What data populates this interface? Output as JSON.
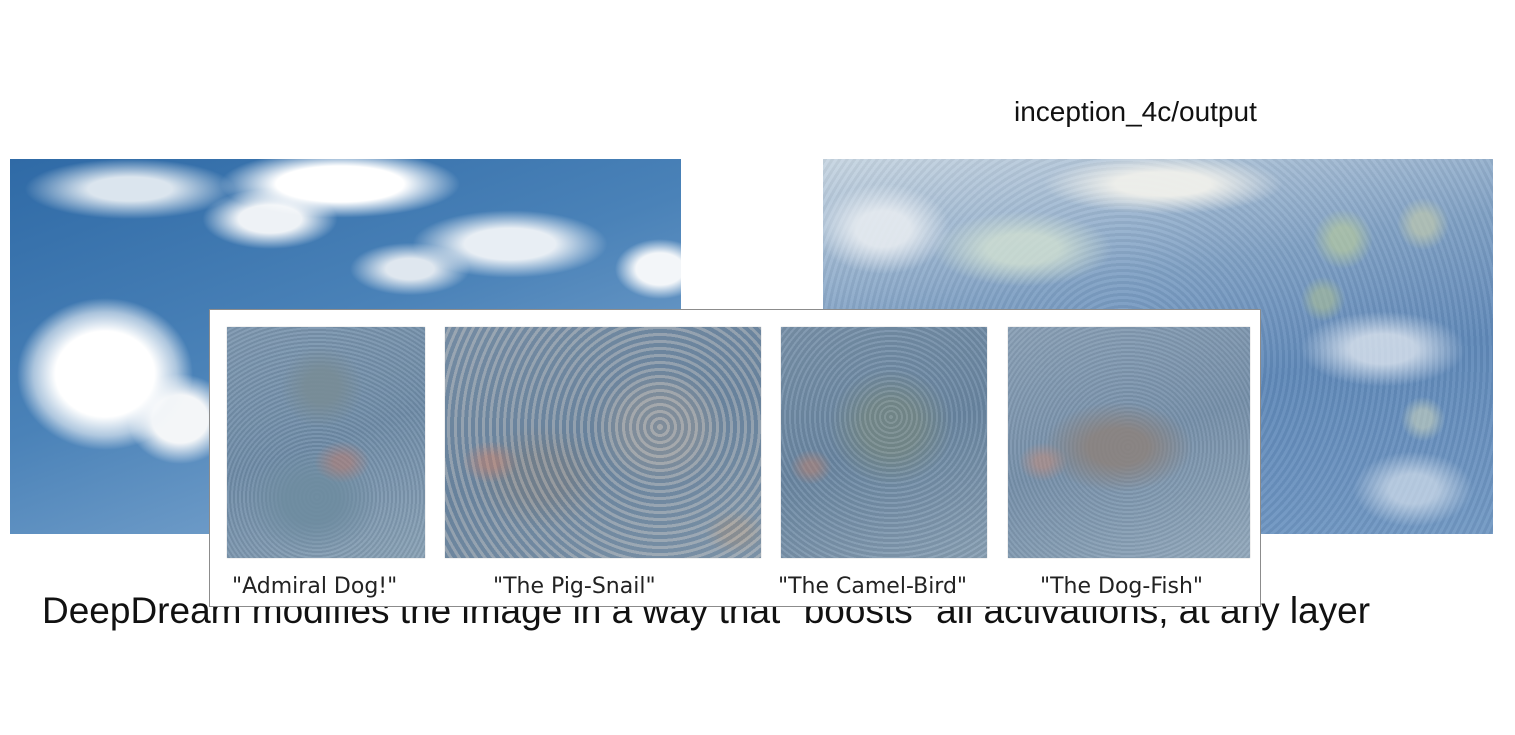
{
  "slide": {
    "layer_label": "inception_4c/output",
    "bottom_text": "DeepDream modifies the image in a way that \"boosts\" all activations, at any layer"
  },
  "overlay": {
    "captions": [
      "\"Admiral Dog!\"",
      "\"The Pig-Snail\"",
      "\"The Camel-Bird\"",
      "\"The Dog-Fish\""
    ]
  }
}
